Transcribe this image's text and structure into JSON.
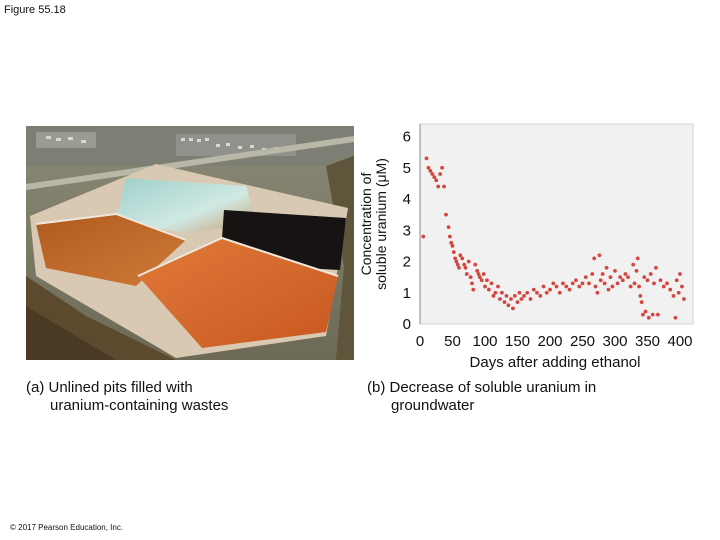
{
  "figure_label": "Figure 55.18",
  "panel_a": {
    "caption_line1": "(a) Unlined pits filled with",
    "caption_line2": "uranium-containing wastes"
  },
  "panel_b": {
    "caption_line1": "(b) Decrease of soluble uranium in",
    "caption_line2": "groundwater"
  },
  "copyright": "© 2017 Pearson Education, Inc.",
  "colors": {
    "points": "#d4463f",
    "plot_bg": "#f1f1f1"
  },
  "chart_data": {
    "type": "scatter",
    "title": "",
    "xlabel": "Days after adding ethanol",
    "ylabel_line1": "Concentration of",
    "ylabel_line2": "soluble uranium (μM)",
    "xlim": [
      0,
      420
    ],
    "ylim": [
      0,
      6.4
    ],
    "xticks": [
      0,
      50,
      100,
      150,
      200,
      250,
      300,
      350,
      400
    ],
    "yticks": [
      0,
      1,
      2,
      3,
      4,
      5,
      6
    ],
    "grid": false,
    "legend": "none",
    "points": [
      [
        5,
        2.8
      ],
      [
        10,
        5.3
      ],
      [
        13,
        5.0
      ],
      [
        16,
        4.9
      ],
      [
        19,
        4.8
      ],
      [
        22,
        4.7
      ],
      [
        25,
        4.6
      ],
      [
        28,
        4.4
      ],
      [
        31,
        4.8
      ],
      [
        34,
        5.0
      ],
      [
        37,
        4.4
      ],
      [
        40,
        3.5
      ],
      [
        44,
        3.1
      ],
      [
        46,
        2.8
      ],
      [
        48,
        2.6
      ],
      [
        50,
        2.5
      ],
      [
        52,
        2.3
      ],
      [
        54,
        2.1
      ],
      [
        56,
        2.0
      ],
      [
        58,
        1.9
      ],
      [
        60,
        1.8
      ],
      [
        62,
        2.2
      ],
      [
        65,
        2.1
      ],
      [
        68,
        1.9
      ],
      [
        70,
        1.8
      ],
      [
        72,
        1.6
      ],
      [
        75,
        2.0
      ],
      [
        78,
        1.5
      ],
      [
        80,
        1.3
      ],
      [
        82,
        1.1
      ],
      [
        85,
        1.9
      ],
      [
        88,
        1.7
      ],
      [
        90,
        1.6
      ],
      [
        92,
        1.5
      ],
      [
        95,
        1.4
      ],
      [
        98,
        1.6
      ],
      [
        100,
        1.2
      ],
      [
        103,
        1.4
      ],
      [
        106,
        1.1
      ],
      [
        110,
        1.3
      ],
      [
        113,
        0.9
      ],
      [
        116,
        1.0
      ],
      [
        120,
        1.2
      ],
      [
        123,
        0.8
      ],
      [
        126,
        1.0
      ],
      [
        130,
        0.7
      ],
      [
        133,
        0.9
      ],
      [
        136,
        0.6
      ],
      [
        140,
        0.8
      ],
      [
        143,
        0.5
      ],
      [
        146,
        0.9
      ],
      [
        150,
        0.7
      ],
      [
        153,
        1.0
      ],
      [
        156,
        0.8
      ],
      [
        160,
        0.9
      ],
      [
        165,
        1.0
      ],
      [
        170,
        0.8
      ],
      [
        175,
        1.1
      ],
      [
        180,
        1.0
      ],
      [
        185,
        0.9
      ],
      [
        190,
        1.2
      ],
      [
        195,
        1.0
      ],
      [
        200,
        1.1
      ],
      [
        205,
        1.3
      ],
      [
        210,
        1.2
      ],
      [
        215,
        1.0
      ],
      [
        220,
        1.3
      ],
      [
        225,
        1.2
      ],
      [
        230,
        1.1
      ],
      [
        235,
        1.3
      ],
      [
        240,
        1.4
      ],
      [
        245,
        1.2
      ],
      [
        250,
        1.3
      ],
      [
        255,
        1.5
      ],
      [
        260,
        1.3
      ],
      [
        265,
        1.6
      ],
      [
        268,
        2.1
      ],
      [
        270,
        1.2
      ],
      [
        273,
        1.0
      ],
      [
        276,
        2.2
      ],
      [
        278,
        1.4
      ],
      [
        281,
        1.6
      ],
      [
        284,
        1.3
      ],
      [
        287,
        1.8
      ],
      [
        290,
        1.1
      ],
      [
        293,
        1.5
      ],
      [
        296,
        1.2
      ],
      [
        300,
        1.7
      ],
      [
        304,
        1.3
      ],
      [
        308,
        1.5
      ],
      [
        312,
        1.4
      ],
      [
        316,
        1.6
      ],
      [
        320,
        1.5
      ],
      [
        324,
        1.2
      ],
      [
        328,
        1.9
      ],
      [
        330,
        1.3
      ],
      [
        333,
        1.7
      ],
      [
        335,
        2.1
      ],
      [
        337,
        1.2
      ],
      [
        339,
        0.9
      ],
      [
        341,
        0.7
      ],
      [
        343,
        0.3
      ],
      [
        345,
        1.5
      ],
      [
        347,
        0.4
      ],
      [
        350,
        1.4
      ],
      [
        352,
        0.2
      ],
      [
        355,
        1.6
      ],
      [
        358,
        0.3
      ],
      [
        360,
        1.3
      ],
      [
        363,
        1.8
      ],
      [
        366,
        0.3
      ],
      [
        370,
        1.4
      ],
      [
        375,
        1.2
      ],
      [
        380,
        1.3
      ],
      [
        385,
        1.1
      ],
      [
        390,
        0.9
      ],
      [
        393,
        0.2
      ],
      [
        395,
        1.4
      ],
      [
        398,
        1.0
      ],
      [
        400,
        1.6
      ],
      [
        403,
        1.2
      ],
      [
        406,
        0.8
      ]
    ]
  }
}
